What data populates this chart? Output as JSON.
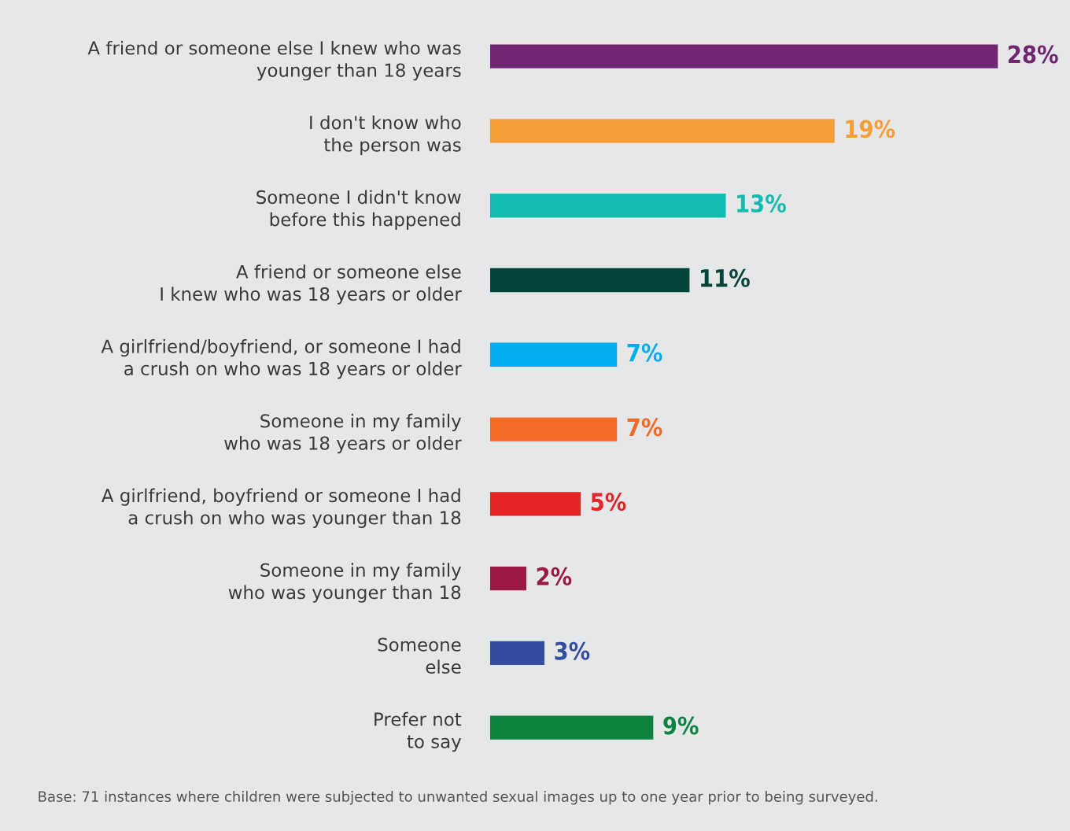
{
  "chart_data": {
    "type": "bar",
    "orientation": "horizontal",
    "categories": [
      "A friend or someone else I knew who was\nyounger than 18 years",
      "I don't know who\nthe person was",
      "Someone I didn't know\nbefore this happened",
      "A friend or someone else\nI knew who was 18 years or older",
      "A girlfriend/boyfriend, or someone I had\na crush on who was 18 years or older",
      "Someone in my family\nwho was 18 years or older",
      "A girlfriend, boyfriend or someone I had\na crush on who was younger than 18",
      "Someone in my family\nwho was younger than 18",
      "Someone\nelse",
      "Prefer not\nto say"
    ],
    "values": [
      28,
      19,
      13,
      11,
      7,
      7,
      5,
      2,
      3,
      9
    ],
    "value_labels": [
      "28%",
      "19%",
      "13%",
      "11%",
      "7%",
      "7%",
      "5%",
      "2%",
      "3%",
      "9%"
    ],
    "colors": [
      "#712672",
      "#f59d38",
      "#13bbb0",
      "#04443a",
      "#00aeef",
      "#f26a23",
      "#e32526",
      "#9b1a44",
      "#344da1",
      "#0c843f"
    ],
    "tick_labels": "y",
    "grid": false,
    "legend": false,
    "annotations": [
      "Base: 71 instances where children were subjected to unwanted sexual images up to one year prior to being surveyed."
    ]
  }
}
